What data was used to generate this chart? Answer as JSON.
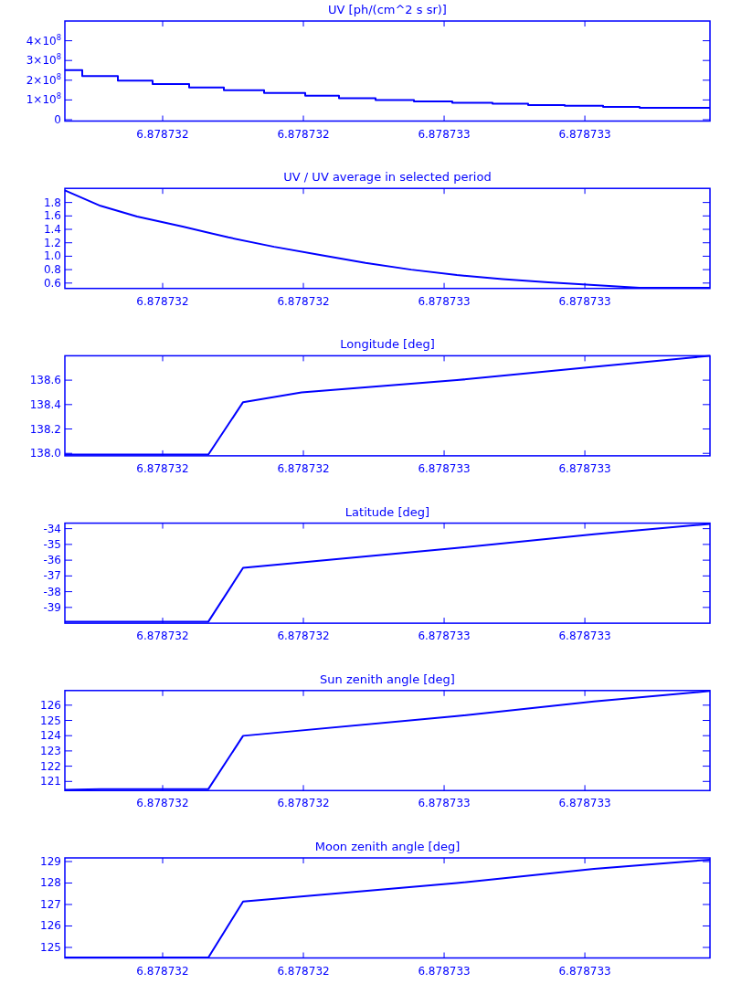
{
  "chart_data": [
    {
      "type": "step",
      "title": "UV [ph/(cm^2 s sr)]",
      "xlim": [
        6.8787317221,
        6.8787335556
      ],
      "xticks": [
        {
          "value": 6.878732,
          "label": "6.878732"
        },
        {
          "value": 6.8787324,
          "label": "6.878732"
        },
        {
          "value": 6.8787328,
          "label": "6.878733"
        },
        {
          "value": 6.8787332,
          "label": "6.878733"
        }
      ],
      "ylim": [
        -7000000,
        500000000
      ],
      "yticks": [
        0,
        {
          "value": 100000000,
          "label": "1×10$^{8}$"
        },
        {
          "value": 200000000,
          "label": "2×10$^{8}$"
        },
        {
          "value": 300000000,
          "label": "3×10$^{8}$"
        },
        {
          "value": 400000000,
          "label": "4×10$^{8}$"
        }
      ],
      "grid": false,
      "series": [
        {
          "color": "#0000ff",
          "x": [
            6.8787317221,
            6.8787317715,
            6.8787318727,
            6.8787319714,
            6.8787320753,
            6.878732174,
            6.8787322883,
            6.8787324052,
            6.8787325012,
            6.8787326051,
            6.8787327142,
            6.8787328232,
            6.8787329375,
            6.8787330388,
            6.8787331427,
            6.8787332518,
            6.8787333556,
            6.8787335556
          ],
          "values": [
            251000000,
            221000000,
            198000000,
            181000000,
            163000000,
            149000000,
            135000000,
            121000000,
            109000000,
            100000000,
            93000000,
            86000000,
            81000000,
            74000000,
            70000000,
            65000000,
            60000000,
            60000000
          ]
        }
      ]
    },
    {
      "type": "line",
      "title": "UV / UV average in selected period",
      "xlim": [
        6.8787317221,
        6.8787335556
      ],
      "xticks": [
        {
          "value": 6.878732,
          "label": "6.878732"
        },
        {
          "value": 6.8787324,
          "label": "6.878732"
        },
        {
          "value": 6.8787328,
          "label": "6.878733"
        },
        {
          "value": 6.8787332,
          "label": "6.878733"
        }
      ],
      "ylim": [
        0.52,
        2.01
      ],
      "yticks": [
        {
          "value": 0.6,
          "label": "0.6"
        },
        {
          "value": 0.8,
          "label": "0.8"
        },
        {
          "value": 1.0,
          "label": "1.0"
        },
        {
          "value": 1.2,
          "label": "1.2"
        },
        {
          "value": 1.4,
          "label": "1.4"
        },
        {
          "value": 1.6,
          "label": "1.6"
        },
        {
          "value": 1.8,
          "label": "1.8"
        }
      ],
      "grid": false,
      "series": [
        {
          "color": "#0000ff",
          "x": [
            6.8787317221,
            6.8787318234,
            6.8787319273,
            6.8787320571,
            6.878732187,
            6.8787323168,
            6.8787324467,
            6.8787325765,
            6.8787327064,
            6.8787328362,
            6.8787329661,
            6.8787330959,
            6.8787332258,
            6.8787333556,
            6.8787335556
          ],
          "values": [
            1.98,
            1.75,
            1.59,
            1.44,
            1.28,
            1.14,
            1.02,
            0.9,
            0.8,
            0.72,
            0.66,
            0.61,
            0.57,
            0.53,
            0.53
          ]
        }
      ]
    },
    {
      "type": "line",
      "title": "Longitude [deg]",
      "xlim": [
        6.8787317221,
        6.8787335556
      ],
      "xticks": [
        {
          "value": 6.878732,
          "label": "6.878732"
        },
        {
          "value": 6.8787324,
          "label": "6.878732"
        },
        {
          "value": 6.8787328,
          "label": "6.878733"
        },
        {
          "value": 6.8787332,
          "label": "6.878733"
        }
      ],
      "ylim": [
        137.98,
        138.8
      ],
      "yticks": [
        {
          "value": 138.0,
          "label": "138.0"
        },
        {
          "value": 138.2,
          "label": "138.2"
        },
        {
          "value": 138.4,
          "label": "138.4"
        },
        {
          "value": 138.6,
          "label": "138.6"
        }
      ],
      "grid": false,
      "series": [
        {
          "color": "#0000ff",
          "x": [
            6.8787317221,
            6.8787321299,
            6.8787322286,
            6.8787323948,
            6.8787328362,
            6.8787332258,
            6.8787335556
          ],
          "values": [
            137.99,
            137.99,
            138.42,
            138.5,
            138.6,
            138.71,
            138.8
          ]
        }
      ]
    },
    {
      "type": "line",
      "title": "Latitude [deg]",
      "xlim": [
        6.8787317221,
        6.8787335556
      ],
      "xticks": [
        {
          "value": 6.878732,
          "label": "6.878732"
        },
        {
          "value": 6.8787324,
          "label": "6.878732"
        },
        {
          "value": 6.8787328,
          "label": "6.878733"
        },
        {
          "value": 6.8787332,
          "label": "6.878733"
        }
      ],
      "ylim": [
        -40,
        -33.65
      ],
      "yticks": [
        -39,
        -38,
        -37,
        -36,
        -35,
        -34
      ],
      "grid": false,
      "series": [
        {
          "color": "#0000ff",
          "x": [
            6.8787317221,
            6.8787321299,
            6.8787322286,
            6.8787328362,
            6.8787332258,
            6.8787335556
          ],
          "values": [
            -39.9,
            -39.9,
            -36.49,
            -35.23,
            -34.35,
            -33.7
          ]
        }
      ]
    },
    {
      "type": "line",
      "title": "Sun zenith angle [deg]",
      "xlim": [
        6.8787317221,
        6.8787335556
      ],
      "xticks": [
        {
          "value": 6.878732,
          "label": "6.878732"
        },
        {
          "value": 6.8787324,
          "label": "6.878732"
        },
        {
          "value": 6.8787328,
          "label": "6.878733"
        },
        {
          "value": 6.8787332,
          "label": "6.878733"
        }
      ],
      "ylim": [
        120.4,
        126.96
      ],
      "yticks": [
        121,
        122,
        123,
        124,
        125,
        126
      ],
      "grid": false,
      "series": [
        {
          "color": "#0000ff",
          "x": [
            6.8787317221,
            6.8787318234,
            6.8787321299,
            6.8787322286,
            6.8787328362,
            6.8787332258,
            6.8787335556
          ],
          "values": [
            120.45,
            120.5,
            120.5,
            123.99,
            125.28,
            126.24,
            126.93
          ]
        }
      ]
    },
    {
      "type": "line",
      "title": "Moon zenith angle [deg]",
      "xlim": [
        6.8787317221,
        6.8787335556
      ],
      "xticks": [
        {
          "value": 6.878732,
          "label": "6.878732"
        },
        {
          "value": 6.8787324,
          "label": "6.878732"
        },
        {
          "value": 6.8787328,
          "label": "6.878733"
        },
        {
          "value": 6.8787332,
          "label": "6.878733"
        }
      ],
      "ylim": [
        124.51,
        129.17
      ],
      "yticks": [
        125,
        126,
        127,
        128,
        129
      ],
      "grid": false,
      "series": [
        {
          "color": "#0000ff",
          "x": [
            6.8787317221,
            6.8787321299,
            6.8787322286,
            6.8787328362,
            6.8787332258,
            6.8787335556
          ],
          "values": [
            124.53,
            124.53,
            127.14,
            128.0,
            128.66,
            129.09
          ]
        }
      ]
    }
  ]
}
